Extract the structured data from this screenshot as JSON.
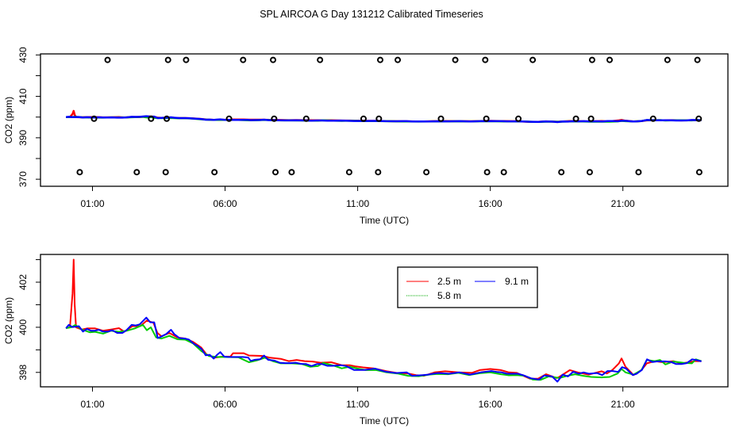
{
  "title": "SPL AIRCOA G  Day 131212  Calibrated Timeseries",
  "colors": {
    "2.5 m": "#ff0000",
    "5.8 m": "#00cc00",
    "9.1 m": "#0000ff",
    "cal_points": "#000000"
  },
  "legend": {
    "placement": "top-center of lower panel",
    "entries": [
      {
        "label": "2.5 m",
        "color": "#ff0000",
        "style": "solid"
      },
      {
        "label": "9.1 m",
        "color": "#0000ff",
        "style": "solid"
      },
      {
        "label": "5.8 m",
        "color": "#00cc00",
        "style": "dotted"
      }
    ]
  },
  "series": [
    {
      "name": "2.5 m",
      "color": "#ff0000",
      "x": [
        0,
        0.15,
        0.25,
        0.29,
        0.33,
        0.38,
        0.6,
        0.8,
        1.1,
        1.4,
        1.7,
        2.0,
        2.2,
        2.5,
        2.8,
        3.05,
        3.3,
        3.45,
        3.6,
        3.9,
        4.2,
        4.5,
        4.8,
        5.1,
        5.3,
        5.6,
        5.9,
        6.2,
        6.3,
        6.7,
        6.9,
        7.4,
        7.7,
        8.1,
        8.4,
        8.7,
        9.0,
        9.3,
        9.6,
        10.0,
        10.4,
        10.7,
        10.9,
        11.2,
        11.6,
        12.1,
        12.5,
        12.9,
        13.2,
        13.5,
        13.9,
        14.3,
        14.8,
        15.3,
        15.6,
        16.0,
        16.4,
        16.7,
        17.0,
        17.5,
        17.8,
        18.1,
        18.5,
        18.6,
        19.0,
        19.3,
        19.7,
        20.2,
        20.4,
        20.6,
        20.85,
        20.95,
        21.1,
        21.4,
        21.7,
        21.9,
        22.2,
        22.5,
        22.9,
        23.2,
        23.5,
        23.7,
        23.96
      ],
      "y": [
        399.96,
        400.0,
        401.5,
        403.0,
        401.0,
        400.0,
        399.9,
        399.95,
        399.95,
        399.85,
        399.9,
        399.96,
        399.8,
        400.05,
        400.05,
        400.3,
        400.2,
        399.75,
        399.6,
        399.75,
        399.55,
        399.5,
        399.35,
        399.1,
        398.8,
        398.65,
        398.7,
        398.7,
        398.85,
        398.85,
        398.75,
        398.73,
        398.65,
        398.6,
        398.5,
        398.55,
        398.5,
        398.48,
        398.43,
        398.45,
        398.32,
        398.32,
        398.27,
        398.22,
        398.18,
        398.05,
        397.97,
        397.95,
        397.88,
        397.85,
        398.0,
        398.05,
        398.0,
        397.98,
        398.1,
        398.15,
        398.1,
        398.0,
        397.98,
        397.72,
        397.72,
        397.92,
        397.75,
        397.8,
        398.1,
        398.0,
        397.9,
        398.05,
        397.95,
        398.1,
        398.4,
        398.62,
        398.25,
        397.88,
        398.1,
        398.4,
        398.5,
        398.45,
        398.5,
        398.4,
        398.45,
        398.5,
        398.5
      ]
    },
    {
      "name": "5.8 m",
      "color": "#00cc00",
      "x": [
        0,
        0.2,
        0.35,
        0.6,
        0.9,
        1.1,
        1.4,
        1.7,
        2.0,
        2.3,
        2.6,
        2.9,
        3.05,
        3.2,
        3.4,
        3.6,
        3.9,
        4.2,
        4.5,
        4.8,
        5.1,
        5.4,
        5.7,
        6.0,
        6.5,
        6.9,
        7.2,
        7.5,
        7.8,
        8.1,
        8.5,
        8.9,
        9.2,
        9.5,
        9.7,
        10.1,
        10.4,
        10.7,
        11.0,
        11.3,
        11.7,
        12.1,
        12.5,
        12.9,
        13.3,
        13.7,
        14.0,
        14.4,
        14.8,
        15.2,
        15.6,
        16.0,
        16.4,
        16.7,
        17.0,
        17.3,
        17.6,
        17.9,
        18.2,
        18.6,
        18.9,
        19.2,
        19.5,
        19.8,
        20.2,
        20.5,
        20.8,
        20.95,
        21.1,
        21.4,
        21.7,
        21.9,
        22.2,
        22.4,
        22.6,
        22.9,
        23.3,
        23.6,
        23.75,
        23.96
      ],
      "y": [
        399.96,
        400.0,
        400.1,
        399.9,
        399.78,
        399.8,
        399.72,
        399.85,
        399.8,
        399.85,
        399.95,
        400.11,
        399.87,
        400.0,
        399.55,
        399.5,
        399.62,
        399.47,
        399.45,
        399.28,
        398.95,
        398.72,
        398.68,
        398.68,
        398.67,
        398.45,
        398.53,
        398.65,
        398.5,
        398.4,
        398.4,
        398.37,
        398.25,
        398.28,
        398.42,
        398.3,
        398.18,
        398.25,
        398.17,
        398.1,
        398.1,
        398.0,
        397.95,
        397.85,
        397.83,
        397.9,
        397.93,
        397.92,
        397.98,
        397.88,
        397.96,
        398.0,
        397.92,
        397.87,
        397.88,
        397.85,
        397.68,
        397.67,
        397.82,
        397.75,
        397.85,
        397.92,
        397.85,
        397.8,
        397.78,
        397.8,
        397.95,
        398.15,
        398.0,
        397.9,
        398.1,
        398.55,
        398.5,
        398.55,
        398.35,
        398.48,
        398.42,
        398.4,
        398.58,
        398.5
      ]
    },
    {
      "name": "9.1 m",
      "color": "#0000ff",
      "x": [
        0,
        0.11,
        0.24,
        0.49,
        0.64,
        0.79,
        0.94,
        1.09,
        1.24,
        1.39,
        1.59,
        1.74,
        1.93,
        2.13,
        2.28,
        2.48,
        2.63,
        2.78,
        3.03,
        3.18,
        3.33,
        3.46,
        3.58,
        3.78,
        3.96,
        4.08,
        4.28,
        4.48,
        4.63,
        4.83,
        4.97,
        5.12,
        5.27,
        5.42,
        5.57,
        5.7,
        5.82,
        5.97,
        6.12,
        6.27,
        6.67,
        6.87,
        6.97,
        7.12,
        7.32,
        7.47,
        7.62,
        7.87,
        8.06,
        8.26,
        8.46,
        8.66,
        8.86,
        9.06,
        9.26,
        9.46,
        9.66,
        9.86,
        10.06,
        10.36,
        10.56,
        10.86,
        11.25,
        11.65,
        12.05,
        12.45,
        12.85,
        13.05,
        13.45,
        13.65,
        13.84,
        14.04,
        14.44,
        14.84,
        15.24,
        15.64,
        16.04,
        16.24,
        16.43,
        16.63,
        17.03,
        17.23,
        17.53,
        17.83,
        18.03,
        18.33,
        18.53,
        18.73,
        18.93,
        19.13,
        19.33,
        19.52,
        19.72,
        20.02,
        20.22,
        20.42,
        20.62,
        20.82,
        20.97,
        21.12,
        21.37,
        21.52,
        21.72,
        21.91,
        22.11,
        22.31,
        22.61,
        22.81,
        23.01,
        23.21,
        23.41,
        23.61,
        23.76,
        23.96
      ],
      "y": [
        399.96,
        400.11,
        400.01,
        400.05,
        399.81,
        399.93,
        399.85,
        399.85,
        399.89,
        399.81,
        399.81,
        399.87,
        399.75,
        399.75,
        399.87,
        400.11,
        400.08,
        400.13,
        400.43,
        400.22,
        400.22,
        399.52,
        399.58,
        399.7,
        399.89,
        399.7,
        399.52,
        399.5,
        399.46,
        399.26,
        399.17,
        399.03,
        398.76,
        398.78,
        398.61,
        398.78,
        398.9,
        398.7,
        398.68,
        398.68,
        398.68,
        398.66,
        398.51,
        398.56,
        398.58,
        398.75,
        398.56,
        398.52,
        398.43,
        398.41,
        398.41,
        398.43,
        398.38,
        398.37,
        398.28,
        398.37,
        398.37,
        398.29,
        398.29,
        398.32,
        398.28,
        398.11,
        398.11,
        398.17,
        398.03,
        397.97,
        398.0,
        397.85,
        397.88,
        397.9,
        397.94,
        397.97,
        397.94,
        398.0,
        397.9,
        398.0,
        398.06,
        398.02,
        398.0,
        397.94,
        397.94,
        397.88,
        397.74,
        397.68,
        397.86,
        397.82,
        397.59,
        397.9,
        397.82,
        398.03,
        397.94,
        398.0,
        397.94,
        397.97,
        397.88,
        398.06,
        398.06,
        398.02,
        398.23,
        398.17,
        397.88,
        397.94,
        398.11,
        398.58,
        398.46,
        398.49,
        398.49,
        398.46,
        398.37,
        398.37,
        398.41,
        398.58,
        398.55,
        398.49
      ]
    }
  ],
  "chart_data": [
    {
      "type": "line",
      "panel": "top",
      "xlabel": "Time (UTC)",
      "ylabel": "CO2 (ppm)",
      "xlim": [
        0,
        24
      ],
      "ylim": [
        366.6,
        430.5
      ],
      "x_ticks": [
        1,
        6,
        11,
        16,
        21
      ],
      "x_tick_labels": [
        "01:00",
        "06:00",
        "11:00",
        "16:00",
        "21:00"
      ],
      "y_ticks": [
        370,
        380,
        390,
        400,
        410,
        420,
        430
      ],
      "y_tick_labels": [
        "370",
        "",
        "390",
        "",
        "410",
        "",
        "430"
      ],
      "grid": false,
      "lines": [
        "2.5 m",
        "5.8 m",
        "9.1 m"
      ],
      "points": {
        "marker": "open-circle",
        "x": [
          1.57,
          3.85,
          4.53,
          6.68,
          7.81,
          9.58,
          11.85,
          12.51,
          14.68,
          15.81,
          17.6,
          19.84,
          20.5,
          22.68,
          23.81,
          0.52,
          2.67,
          3.76,
          5.6,
          7.9,
          8.51,
          10.68,
          11.77,
          13.59,
          15.88,
          16.51,
          18.68,
          19.75,
          21.59,
          23.88,
          1.06,
          3.21,
          3.8,
          6.15,
          7.85,
          9.06,
          11.22,
          11.8,
          14.14,
          15.85,
          17.06,
          19.23,
          19.8,
          22.14,
          23.86
        ],
        "y": [
          427.6,
          427.6,
          427.6,
          427.6,
          427.6,
          427.6,
          427.6,
          427.6,
          427.6,
          427.6,
          427.6,
          427.6,
          427.6,
          427.6,
          427.6,
          373.4,
          373.4,
          373.4,
          373.4,
          373.4,
          373.4,
          373.4,
          373.4,
          373.4,
          373.4,
          373.4,
          373.4,
          373.4,
          373.4,
          373.4,
          399.2,
          399.2,
          399.2,
          399.2,
          399.2,
          399.2,
          399.2,
          399.2,
          399.2,
          399.2,
          399.2,
          399.2,
          399.2,
          399.2,
          399.2
        ]
      }
    },
    {
      "type": "line",
      "panel": "bottom",
      "xlabel": "Time (UTC)",
      "ylabel": "CO2 (ppm)",
      "xlim": [
        0,
        24
      ],
      "ylim": [
        397.36,
        403.23
      ],
      "x_ticks": [
        1,
        6,
        11,
        16,
        21
      ],
      "x_tick_labels": [
        "01:00",
        "06:00",
        "11:00",
        "16:00",
        "21:00"
      ],
      "y_ticks": [
        398,
        399,
        400,
        401,
        402,
        403
      ],
      "y_tick_labels": [
        "398",
        "",
        "400",
        "",
        "402",
        ""
      ],
      "grid": false,
      "lines": [
        "2.5 m",
        "5.8 m",
        "9.1 m"
      ],
      "legend": true
    }
  ]
}
